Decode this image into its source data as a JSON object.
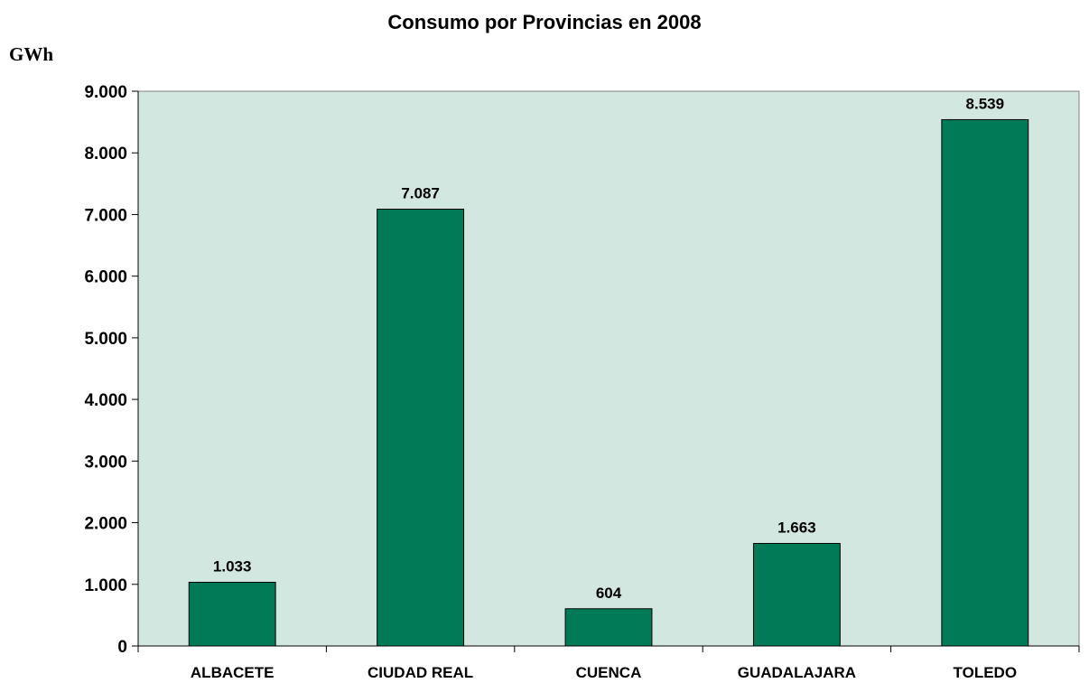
{
  "chart_data": {
    "type": "bar",
    "title": "Consumo por Provincias en 2008",
    "ylabel": "GWh",
    "xlabel": "",
    "categories": [
      "ALBACETE",
      "CIUDAD REAL",
      "CUENCA",
      "GUADALAJARA",
      "TOLEDO"
    ],
    "values": [
      1033,
      7087,
      604,
      1663,
      8539
    ],
    "value_labels": [
      "1.033",
      "7.087",
      "604",
      "1.663",
      "8.539"
    ],
    "yticks": [
      0,
      1000,
      2000,
      3000,
      4000,
      5000,
      6000,
      7000,
      8000,
      9000
    ],
    "ytick_labels": [
      "0",
      "1.000",
      "2.000",
      "3.000",
      "4.000",
      "5.000",
      "6.000",
      "7.000",
      "8.000",
      "9.000"
    ],
    "ylim": [
      0,
      9000
    ],
    "grid": false,
    "legend": "none",
    "colors": {
      "bar": "#007a57",
      "plot_background": "#d3e7e1",
      "axis": "#000000"
    }
  }
}
